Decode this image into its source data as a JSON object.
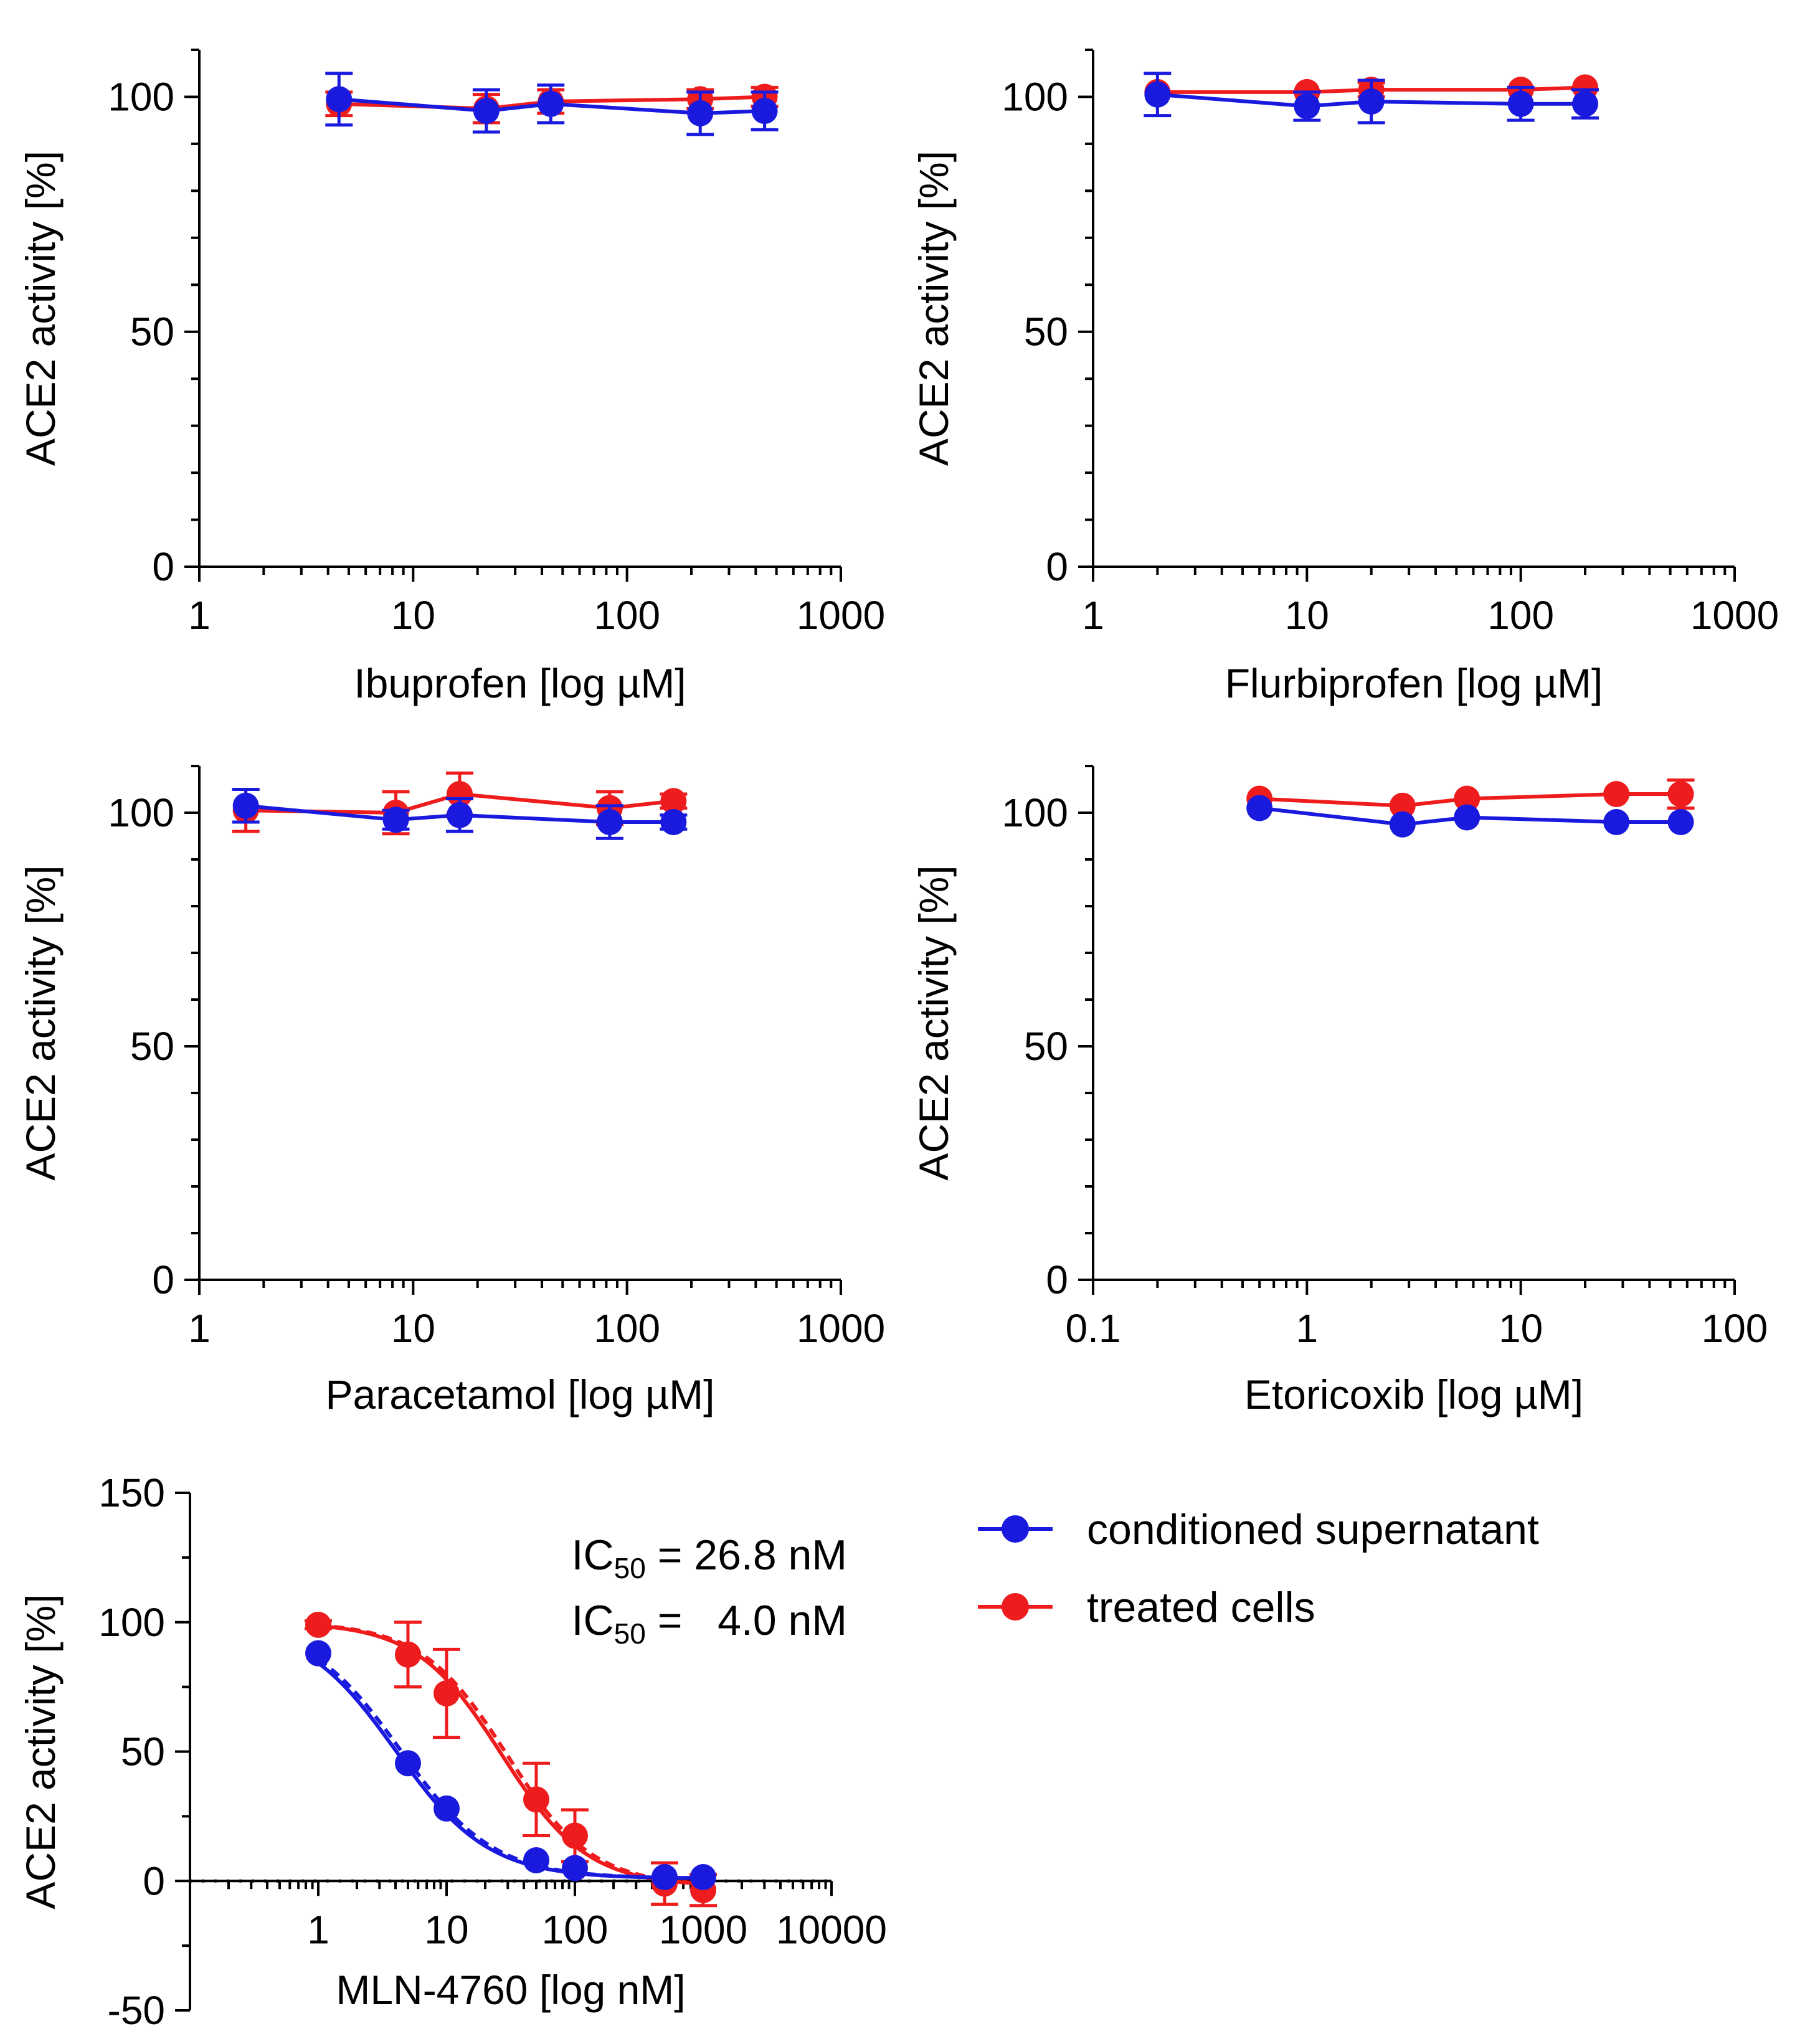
{
  "figure": {
    "colors": {
      "conditioned_supernatant": "#1a1adf",
      "treated_cells": "#ee1c1c",
      "axis": "#000000"
    },
    "legend": {
      "items": [
        {
          "label": "conditioned supernatant",
          "color": "#1a1adf"
        },
        {
          "label": "treated cells",
          "color": "#ee1c1c"
        }
      ]
    }
  },
  "chart_data": [
    {
      "type": "scatter",
      "title": "",
      "xlabel": "Ibuprofen [log µM]",
      "ylabel": "ACE2 activity [%]",
      "xscale": "log",
      "xlim": [
        1,
        1000
      ],
      "ylim": [
        0,
        110
      ],
      "x_ticks": [
        1,
        10,
        100,
        1000
      ],
      "x_tick_labels": [
        "1",
        "10",
        "100",
        "1000"
      ],
      "y_ticks": [
        0,
        50,
        100
      ],
      "y_tick_labels": [
        "0",
        "50",
        "100"
      ],
      "series": [
        {
          "name": "treated cells",
          "x": [
            4.5,
            22,
            44,
            220,
            440
          ],
          "y": [
            98.5,
            97.5,
            99,
            99.5,
            100
          ],
          "err": [
            2.5,
            3,
            2.5,
            2,
            2
          ]
        },
        {
          "name": "conditioned supernatant",
          "x": [
            4.5,
            22,
            44,
            220,
            440
          ],
          "y": [
            99.5,
            97,
            98.5,
            96.5,
            97
          ],
          "err": [
            5.5,
            4.5,
            4,
            4.5,
            4
          ]
        }
      ]
    },
    {
      "type": "scatter",
      "title": "",
      "xlabel": "Flurbiprofen [log µM]",
      "ylabel": "ACE2 activity [%]",
      "xscale": "log",
      "xlim": [
        1,
        1000
      ],
      "ylim": [
        0,
        110
      ],
      "x_ticks": [
        1,
        10,
        100,
        1000
      ],
      "x_tick_labels": [
        "1",
        "10",
        "100",
        "1000"
      ],
      "y_ticks": [
        0,
        50,
        100
      ],
      "y_tick_labels": [
        "0",
        "50",
        "100"
      ],
      "series": [
        {
          "name": "treated cells",
          "x": [
            2,
            10,
            20,
            100,
            200
          ],
          "y": [
            101,
            101,
            101.5,
            101.5,
            102
          ],
          "err": [
            1,
            1,
            1.5,
            1,
            1
          ]
        },
        {
          "name": "conditioned supernatant",
          "x": [
            2,
            10,
            20,
            100,
            200
          ],
          "y": [
            100.5,
            98,
            99,
            98.5,
            98.5
          ],
          "err": [
            4.5,
            3,
            4.5,
            3.5,
            3
          ]
        }
      ]
    },
    {
      "type": "scatter",
      "title": "",
      "xlabel": "Paracetamol [log µM]",
      "ylabel": "ACE2 activity [%]",
      "xscale": "log",
      "xlim": [
        1,
        1000
      ],
      "ylim": [
        0,
        110
      ],
      "x_ticks": [
        1,
        10,
        100,
        1000
      ],
      "x_tick_labels": [
        "1",
        "10",
        "100",
        "1000"
      ],
      "y_ticks": [
        0,
        50,
        100
      ],
      "y_tick_labels": [
        "0",
        "50",
        "100"
      ],
      "series": [
        {
          "name": "treated cells",
          "x": [
            1.65,
            8.3,
            16.5,
            83,
            165
          ],
          "y": [
            100.5,
            100,
            104,
            101,
            102.5
          ],
          "err": [
            4.5,
            4.5,
            4.5,
            3.5,
            1.5
          ]
        },
        {
          "name": "conditioned supernatant",
          "x": [
            1.65,
            8.3,
            16.5,
            83,
            165
          ],
          "y": [
            101.5,
            98.5,
            99.5,
            98,
            98
          ],
          "err": [
            3.5,
            2,
            3.5,
            3.5,
            1.5
          ]
        }
      ]
    },
    {
      "type": "scatter",
      "title": "",
      "xlabel": "Etoricoxib [log µM]",
      "ylabel": "ACE2 activity [%]",
      "xscale": "log",
      "xlim": [
        0.1,
        100
      ],
      "ylim": [
        0,
        110
      ],
      "x_ticks": [
        0.1,
        1,
        10,
        100
      ],
      "x_tick_labels": [
        "0.1",
        "1",
        "10",
        "100"
      ],
      "y_ticks": [
        0,
        50,
        100
      ],
      "y_tick_labels": [
        "0",
        "50",
        "100"
      ],
      "series": [
        {
          "name": "treated cells",
          "x": [
            0.6,
            2.8,
            5.6,
            28,
            56
          ],
          "y": [
            103,
            101.5,
            103,
            104,
            104
          ],
          "err": [
            1,
            1,
            1,
            1,
            3
          ]
        },
        {
          "name": "conditioned supernatant",
          "x": [
            0.6,
            2.8,
            5.6,
            28,
            56
          ],
          "y": [
            101,
            97.5,
            99,
            98,
            98
          ],
          "err": [
            1,
            1,
            1,
            1,
            1
          ]
        }
      ]
    },
    {
      "type": "scatter",
      "title": "",
      "xlabel": "MLN-4760 [log nM]",
      "ylabel": "ACE2 activity [%]",
      "xscale": "log",
      "xlim": [
        0.1,
        10000
      ],
      "ylim": [
        -50,
        150
      ],
      "x_ticks": [
        1,
        10,
        100,
        1000,
        10000
      ],
      "x_tick_labels": [
        "1",
        "10",
        "100",
        "1000",
        "10000"
      ],
      "y_ticks": [
        -50,
        0,
        50,
        100,
        150
      ],
      "y_tick_labels": [
        "-50",
        "0",
        "50",
        "100",
        "150"
      ],
      "zero_line": "dotted",
      "series": [
        {
          "name": "treated cells",
          "x": [
            1,
            5,
            10,
            50,
            100,
            500,
            1000
          ],
          "y": [
            99,
            87.5,
            72.5,
            31.5,
            17.5,
            -1,
            -3.5
          ],
          "err": [
            1.5,
            12.5,
            17,
            14,
            10,
            8,
            6
          ]
        },
        {
          "name": "conditioned supernatant",
          "x": [
            1,
            5,
            10,
            50,
            100,
            500,
            1000
          ],
          "y": [
            88,
            45.5,
            28,
            8,
            5,
            1.5,
            1.5
          ],
          "err": [
            1,
            1,
            1,
            1,
            1,
            1,
            1
          ]
        }
      ],
      "fits": [
        {
          "name": "treated cells",
          "ic50": 26.8,
          "top": 100,
          "bottom": -2,
          "hill": 1.3
        },
        {
          "name": "conditioned supernatant",
          "ic50": 4.0,
          "top": 100,
          "bottom": 1,
          "hill": 1.2
        }
      ],
      "annotations": [
        {
          "series": "treated cells",
          "prefix": "IC",
          "subscript": "50",
          "text": " = 26.8 nM",
          "color": "#ee1c1c"
        },
        {
          "series": "conditioned supernatant",
          "prefix": "IC",
          "subscript": "50",
          "text": " =   4.0 nM",
          "color": "#1a1adf"
        }
      ]
    }
  ]
}
